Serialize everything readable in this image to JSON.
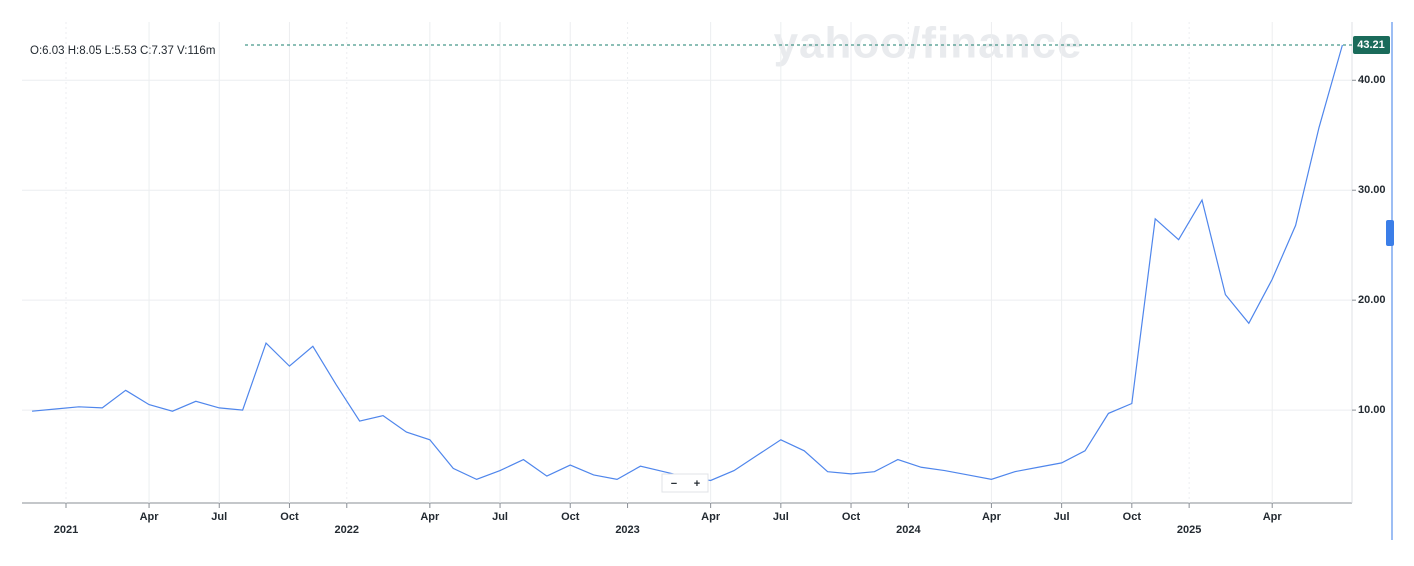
{
  "chart_data": {
    "type": "line",
    "ohlc_text": "O:6.03  H:8.05  L:5.53  C:7.37  V:116m",
    "watermark": "yahoo/finance",
    "current_price_label": "43.21",
    "zoom_controls": [
      "−",
      "+"
    ],
    "x": [
      0,
      1,
      2,
      3,
      4,
      5,
      6,
      7,
      8,
      9,
      10,
      11,
      12,
      13,
      14,
      15,
      16,
      17,
      18,
      19,
      20,
      21,
      22,
      23,
      24,
      25,
      26,
      27,
      28,
      29,
      30,
      31,
      32,
      33,
      34,
      35,
      36,
      37,
      38,
      39,
      40,
      41,
      42,
      43,
      44,
      45,
      46,
      47,
      48,
      49,
      50,
      51,
      52,
      53,
      54,
      55,
      56
    ],
    "series": [
      {
        "color": "#4f86ec",
        "values": [
          9.9,
          10.1,
          10.3,
          10.2,
          11.8,
          10.5,
          9.9,
          10.8,
          10.2,
          10.0,
          16.1,
          14.0,
          15.8,
          12.3,
          9.0,
          9.5,
          8.0,
          7.3,
          4.7,
          3.7,
          4.5,
          5.5,
          4.0,
          5.0,
          4.1,
          3.7,
          4.9,
          4.4,
          3.9,
          3.6,
          4.5,
          5.9,
          7.3,
          6.3,
          4.4,
          4.2,
          4.4,
          5.5,
          4.8,
          4.5,
          4.1,
          3.7,
          4.4,
          4.8,
          5.2,
          6.3,
          9.7,
          10.6,
          27.4,
          25.5,
          29.1,
          20.5,
          17.9,
          21.9,
          26.8,
          35.7,
          43.21
        ]
      }
    ],
    "xlim": [
      -0.43,
      56.41
    ],
    "xticks": [
      {
        "value": 1.45,
        "label": "2021"
      },
      {
        "value": 5,
        "label": "Apr"
      },
      {
        "value": 8,
        "label": "Jul"
      },
      {
        "value": 11,
        "label": "Oct"
      },
      {
        "value": 13.45,
        "label": "2022"
      },
      {
        "value": 17,
        "label": "Apr"
      },
      {
        "value": 20,
        "label": "Jul"
      },
      {
        "value": 23,
        "label": "Oct"
      },
      {
        "value": 25.45,
        "label": "2023"
      },
      {
        "value": 29,
        "label": "Apr"
      },
      {
        "value": 32,
        "label": "Jul"
      },
      {
        "value": 35,
        "label": "Oct"
      },
      {
        "value": 37.45,
        "label": "2024"
      },
      {
        "value": 41,
        "label": "Apr"
      },
      {
        "value": 44,
        "label": "Jul"
      },
      {
        "value": 47,
        "label": "Oct"
      },
      {
        "value": 49.45,
        "label": "2025"
      },
      {
        "value": 53,
        "label": "Apr"
      }
    ],
    "ylim": [
      1.55,
      45.3
    ],
    "yticks": [
      {
        "value": 10,
        "label": "10.00"
      },
      {
        "value": 20,
        "label": "20.00"
      },
      {
        "value": 30,
        "label": "30.00"
      },
      {
        "value": 40,
        "label": "40.00"
      }
    ],
    "grid": true
  }
}
